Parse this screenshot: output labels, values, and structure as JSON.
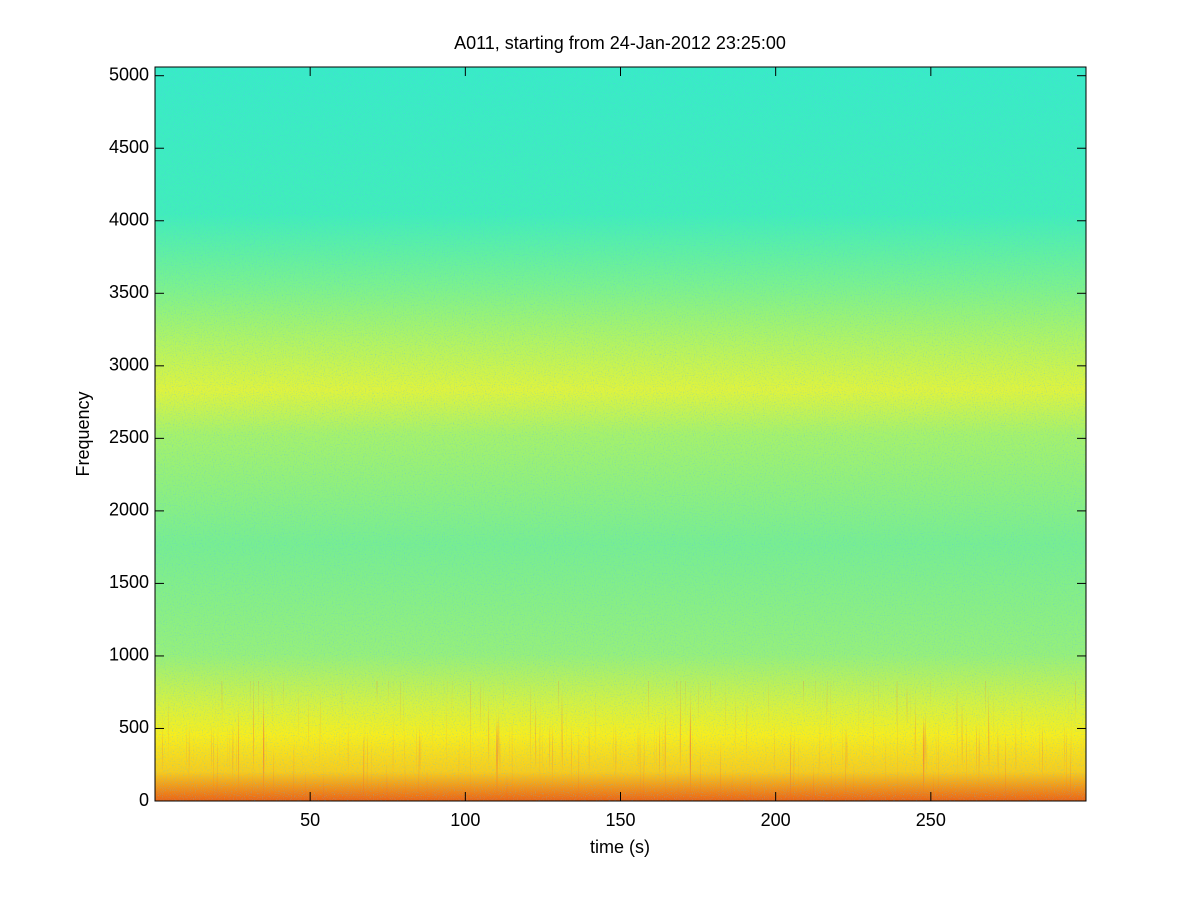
{
  "chart_data": {
    "type": "spectrogram",
    "title": "A011, starting from 24-Jan-2012 23:25:00",
    "xlabel": "time (s)",
    "ylabel": "Frequency",
    "xlim": [
      0,
      300
    ],
    "xticks": [
      50,
      100,
      150,
      200,
      250
    ],
    "ylim": [
      0,
      5060
    ],
    "yticks": [
      0,
      500,
      1000,
      1500,
      2000,
      2500,
      3000,
      3500,
      4000,
      4500,
      5000
    ],
    "colormap": "jet"
  }
}
